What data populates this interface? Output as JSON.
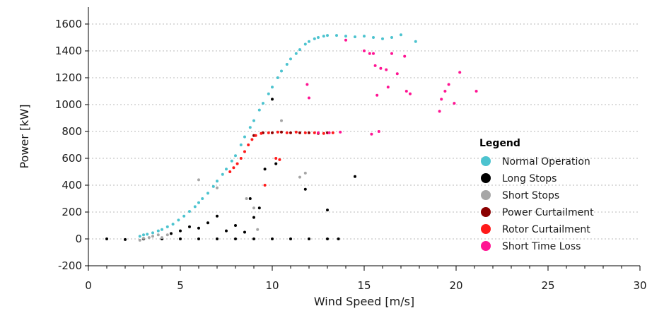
{
  "chart_data": {
    "type": "scatter",
    "title": "",
    "xlabel": "Wind Speed [m/s]",
    "ylabel": "Power [kW]",
    "xlim": [
      0,
      30
    ],
    "ylim": [
      -200,
      1650
    ],
    "xticks": [
      0,
      5,
      10,
      15,
      20,
      25,
      30
    ],
    "yticks": [
      -200,
      0,
      200,
      400,
      600,
      800,
      1000,
      1200,
      1400,
      1600
    ],
    "grid": "horizontal dotted",
    "legend": {
      "title": "Legend",
      "position": "right"
    },
    "series": [
      {
        "name": "Normal Operation",
        "color": "#4cc3cf",
        "points": [
          [
            2.8,
            20
          ],
          [
            3.0,
            30
          ],
          [
            3.2,
            35
          ],
          [
            3.5,
            45
          ],
          [
            3.8,
            60
          ],
          [
            4.0,
            70
          ],
          [
            4.3,
            90
          ],
          [
            4.6,
            110
          ],
          [
            4.9,
            140
          ],
          [
            5.2,
            170
          ],
          [
            5.5,
            205
          ],
          [
            5.8,
            240
          ],
          [
            6.0,
            270
          ],
          [
            6.2,
            300
          ],
          [
            6.5,
            340
          ],
          [
            6.8,
            390
          ],
          [
            7.0,
            430
          ],
          [
            7.3,
            480
          ],
          [
            7.5,
            520
          ],
          [
            7.8,
            580
          ],
          [
            8.0,
            620
          ],
          [
            8.3,
            700
          ],
          [
            8.5,
            760
          ],
          [
            8.8,
            830
          ],
          [
            9.0,
            880
          ],
          [
            9.3,
            960
          ],
          [
            9.5,
            1010
          ],
          [
            9.8,
            1080
          ],
          [
            10.0,
            1130
          ],
          [
            10.3,
            1200
          ],
          [
            10.5,
            1250
          ],
          [
            10.8,
            1300
          ],
          [
            11.0,
            1340
          ],
          [
            11.3,
            1380
          ],
          [
            11.5,
            1410
          ],
          [
            11.8,
            1450
          ],
          [
            12.0,
            1470
          ],
          [
            12.3,
            1490
          ],
          [
            12.5,
            1500
          ],
          [
            12.8,
            1510
          ],
          [
            13.0,
            1515
          ],
          [
            13.5,
            1515
          ],
          [
            14.0,
            1510
          ],
          [
            14.5,
            1505
          ],
          [
            15.0,
            1510
          ],
          [
            15.5,
            1500
          ],
          [
            16.0,
            1490
          ],
          [
            16.5,
            1500
          ],
          [
            17.0,
            1520
          ],
          [
            17.8,
            1470
          ]
        ]
      },
      {
        "name": "Long Stops",
        "color": "#000000",
        "points": [
          [
            1.0,
            0
          ],
          [
            2.0,
            -5
          ],
          [
            3.0,
            0
          ],
          [
            4.0,
            0
          ],
          [
            5.0,
            0
          ],
          [
            6.0,
            0
          ],
          [
            7.0,
            0
          ],
          [
            8.0,
            0
          ],
          [
            9.0,
            0
          ],
          [
            10.0,
            0
          ],
          [
            11.0,
            0
          ],
          [
            12.0,
            0
          ],
          [
            13.0,
            0
          ],
          [
            13.6,
            0
          ],
          [
            4.5,
            40
          ],
          [
            5.0,
            60
          ],
          [
            5.5,
            90
          ],
          [
            6.0,
            80
          ],
          [
            6.5,
            120
          ],
          [
            7.0,
            170
          ],
          [
            7.5,
            60
          ],
          [
            8.0,
            100
          ],
          [
            8.5,
            50
          ],
          [
            8.8,
            300
          ],
          [
            9.0,
            160
          ],
          [
            9.3,
            230
          ],
          [
            9.6,
            520
          ],
          [
            10.0,
            1040
          ],
          [
            10.2,
            560
          ],
          [
            11.8,
            370
          ],
          [
            13.0,
            215
          ],
          [
            14.5,
            465
          ]
        ]
      },
      {
        "name": "Short Stops",
        "color": "#a6a6a6",
        "points": [
          [
            2.8,
            -10
          ],
          [
            3.0,
            5
          ],
          [
            3.3,
            10
          ],
          [
            3.5,
            20
          ],
          [
            3.8,
            30
          ],
          [
            4.0,
            10
          ],
          [
            4.3,
            30
          ],
          [
            6.0,
            440
          ],
          [
            7.0,
            380
          ],
          [
            8.6,
            300
          ],
          [
            9.0,
            230
          ],
          [
            9.2,
            70
          ],
          [
            10.5,
            880
          ],
          [
            11.8,
            490
          ],
          [
            11.5,
            460
          ]
        ]
      },
      {
        "name": "Power Curtailment",
        "color": "#8b0000",
        "points": [
          [
            9.0,
            770
          ],
          [
            9.5,
            790
          ],
          [
            10.0,
            790
          ],
          [
            10.5,
            795
          ],
          [
            11.0,
            790
          ],
          [
            11.5,
            790
          ],
          [
            12.0,
            790
          ],
          [
            12.5,
            785
          ],
          [
            13.0,
            790
          ]
        ]
      },
      {
        "name": "Rotor Curtailment",
        "color": "#ff1a1a",
        "points": [
          [
            7.7,
            500
          ],
          [
            7.9,
            530
          ],
          [
            8.1,
            560
          ],
          [
            8.3,
            600
          ],
          [
            8.5,
            650
          ],
          [
            8.7,
            700
          ],
          [
            8.9,
            740
          ],
          [
            9.1,
            770
          ],
          [
            9.4,
            785
          ],
          [
            9.8,
            790
          ],
          [
            10.3,
            795
          ],
          [
            10.8,
            790
          ],
          [
            11.3,
            795
          ],
          [
            11.8,
            790
          ],
          [
            12.3,
            790
          ],
          [
            12.8,
            785
          ],
          [
            13.3,
            790
          ],
          [
            9.6,
            400
          ],
          [
            10.2,
            600
          ],
          [
            10.4,
            590
          ]
        ]
      },
      {
        "name": "Short Time Loss",
        "color": "#ff1493",
        "points": [
          [
            11.9,
            1150
          ],
          [
            12.0,
            1050
          ],
          [
            12.5,
            790
          ],
          [
            13.1,
            790
          ],
          [
            13.7,
            795
          ],
          [
            14.0,
            1480
          ],
          [
            15.0,
            1400
          ],
          [
            15.3,
            1380
          ],
          [
            15.6,
            1290
          ],
          [
            15.9,
            1270
          ],
          [
            16.2,
            1260
          ],
          [
            15.5,
            1380
          ],
          [
            16.5,
            1380
          ],
          [
            16.8,
            1230
          ],
          [
            17.2,
            1360
          ],
          [
            15.7,
            1070
          ],
          [
            16.3,
            1130
          ],
          [
            17.3,
            1100
          ],
          [
            17.5,
            1080
          ],
          [
            15.4,
            780
          ],
          [
            15.8,
            800
          ],
          [
            19.1,
            950
          ],
          [
            19.2,
            1040
          ],
          [
            19.4,
            1100
          ],
          [
            19.6,
            1150
          ],
          [
            19.9,
            1010
          ],
          [
            20.2,
            1240
          ],
          [
            21.1,
            1100
          ]
        ]
      }
    ]
  }
}
